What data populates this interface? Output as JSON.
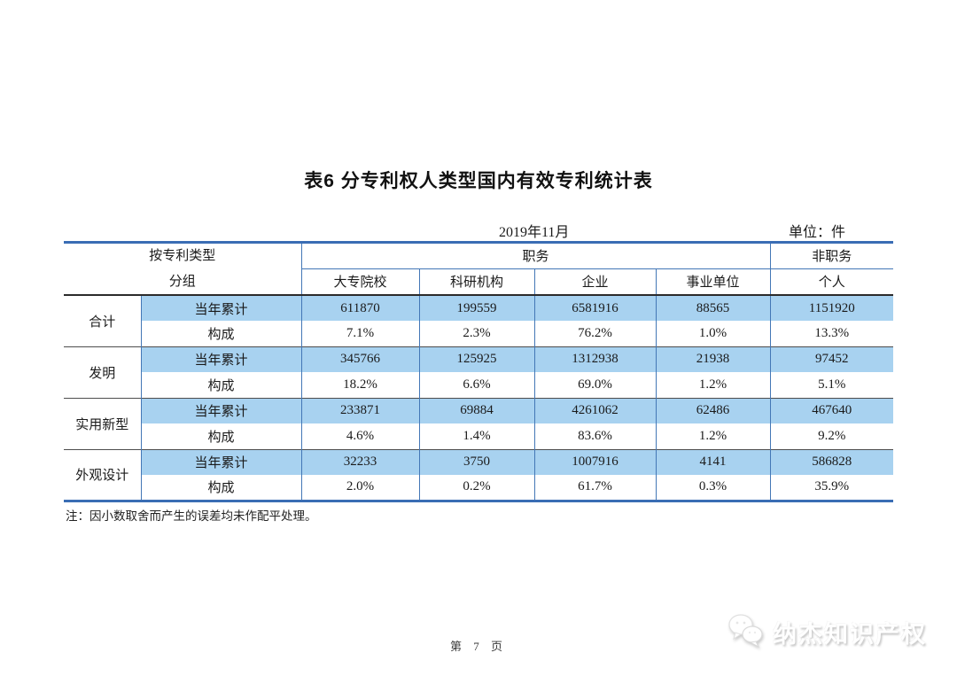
{
  "page": {
    "title": "表6 分专利权人类型国内有效专利统计表",
    "date": "2019年11月",
    "unit": "单位：件",
    "note": "注：因小数取舍而产生的误差均未作配平处理。",
    "page_number": "第 7 页",
    "watermark": "纳杰知识产权"
  },
  "table": {
    "header": {
      "group_line1": "按专利类型",
      "group_line2": "分组",
      "service": "职务",
      "non_service": "非职务",
      "subcolumns": [
        "大专院校",
        "科研机构",
        "企业",
        "事业单位",
        "个人"
      ]
    },
    "row_labels": {
      "cumulative": "当年累计",
      "composition": "构成"
    },
    "groups": [
      {
        "label": "合计",
        "cumulative": [
          "611870",
          "199559",
          "6581916",
          "88565",
          "1151920"
        ],
        "composition": [
          "7.1%",
          "2.3%",
          "76.2%",
          "1.0%",
          "13.3%"
        ]
      },
      {
        "label": "发明",
        "cumulative": [
          "345766",
          "125925",
          "1312938",
          "21938",
          "97452"
        ],
        "composition": [
          "18.2%",
          "6.6%",
          "69.0%",
          "1.2%",
          "5.1%"
        ]
      },
      {
        "label": "实用新型",
        "cumulative": [
          "233871",
          "69884",
          "4261062",
          "62486",
          "467640"
        ],
        "composition": [
          "4.6%",
          "1.4%",
          "83.6%",
          "1.2%",
          "9.2%"
        ]
      },
      {
        "label": "外观设计",
        "cumulative": [
          "32233",
          "3750",
          "1007916",
          "4141",
          "586828"
        ],
        "composition": [
          "2.0%",
          "0.2%",
          "61.7%",
          "0.3%",
          "35.9%"
        ]
      }
    ],
    "colors": {
      "highlight_row_bg": "#a8d2f0",
      "border_blue": "#4377b6",
      "thick_rule_blue": "#3a6db4",
      "dark_rule": "#2b2b2b"
    }
  }
}
